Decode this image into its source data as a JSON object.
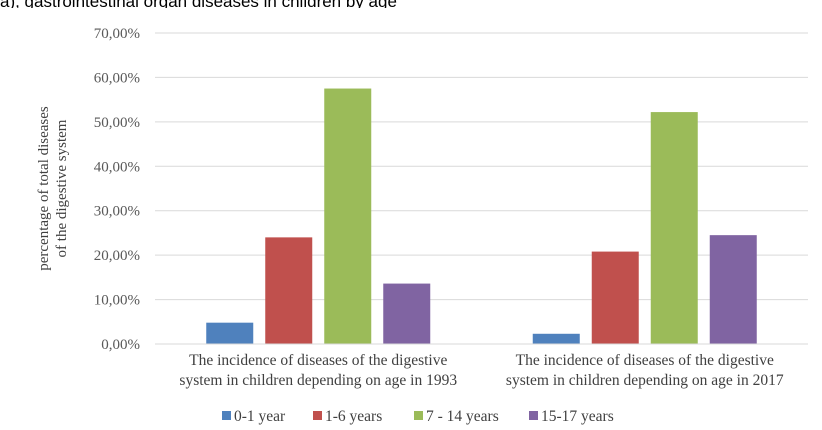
{
  "page_caption": "a), gastrointestinal organ diseases in children by age",
  "chart_data": {
    "type": "bar",
    "ylabel": [
      "percentage of total  diseases",
      "of the digestive system"
    ],
    "xlabel": "",
    "ylim": [
      0,
      0.7
    ],
    "ytick_step": 0.1,
    "ytick_labels": [
      "0,00%",
      "10,00%",
      "20,00%",
      "30,00%",
      "40,00%",
      "50,00%",
      "60,00%",
      "70,00%"
    ],
    "grid": true,
    "legend_position": "bottom",
    "categories": [
      [
        "The incidence of diseases of the digestive",
        "system in children depending on age in 1993"
      ],
      [
        "The incidence of diseases of the digestive",
        "system in children depending on age in 2017"
      ]
    ],
    "series": [
      {
        "name": "0-1 year",
        "color": "#4f81bd",
        "values": [
          0.048,
          0.023
        ]
      },
      {
        "name": "1-6 years",
        "color": "#c0504d",
        "values": [
          0.24,
          0.208
        ]
      },
      {
        "name": "7 - 14 years",
        "color": "#9bbb59",
        "values": [
          0.575,
          0.522
        ]
      },
      {
        "name": "15-17 years",
        "color": "#8064a2",
        "values": [
          0.136,
          0.245
        ]
      }
    ]
  }
}
